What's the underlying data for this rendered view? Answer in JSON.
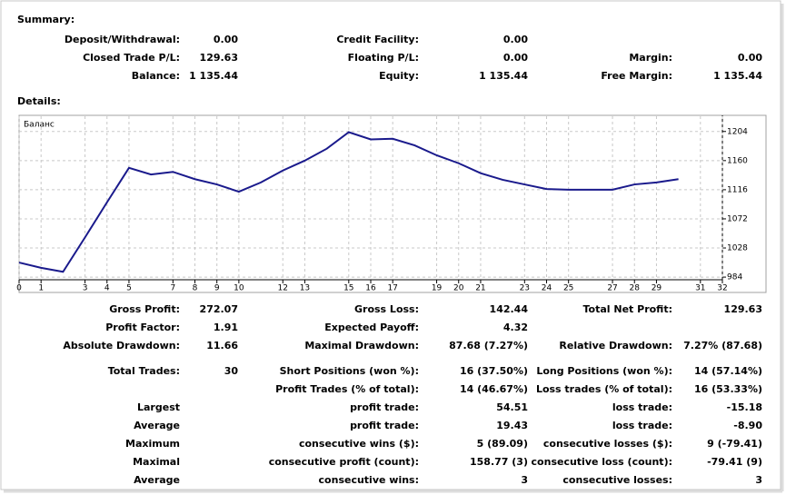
{
  "summary": {
    "title": "Summary:",
    "rows": [
      [
        {
          "label": "Deposit/Withdrawal:",
          "value": "0.00"
        },
        {
          "label": "Credit Facility:",
          "value": "0.00"
        },
        null
      ],
      [
        {
          "label": "Closed Trade P/L:",
          "value": "129.63"
        },
        {
          "label": "Floating P/L:",
          "value": "0.00"
        },
        {
          "label": "Margin:",
          "value": "0.00"
        }
      ],
      [
        {
          "label": "Balance:",
          "value": "1 135.44"
        },
        {
          "label": "Equity:",
          "value": "1 135.44"
        },
        {
          "label": "Free Margin:",
          "value": "1 135.44"
        }
      ]
    ]
  },
  "details": {
    "title": "Details:",
    "rows": [
      [
        {
          "label": "Gross Profit:",
          "value": "272.07"
        },
        {
          "label": "Gross Loss:",
          "value": "142.44"
        },
        {
          "label": "Total Net Profit:",
          "value": "129.63"
        }
      ],
      [
        {
          "label": "Profit Factor:",
          "value": "1.91"
        },
        {
          "label": "Expected Payoff:",
          "value": "4.32"
        },
        null
      ],
      [
        {
          "label": "Absolute Drawdown:",
          "value": "11.66"
        },
        {
          "label": "Maximal Drawdown:",
          "value": "87.68 (7.27%)"
        },
        {
          "label": "Relative Drawdown:",
          "value": "7.27% (87.68)"
        }
      ],
      [
        {
          "label": "Total Trades:",
          "value": "30"
        },
        {
          "label": "Short Positions (won %):",
          "value": "16 (37.50%)"
        },
        {
          "label": "Long Positions (won %):",
          "value": "14 (57.14%)"
        }
      ],
      [
        null,
        {
          "label": "Profit Trades (% of total):",
          "value": "14 (46.67%)"
        },
        {
          "label": "Loss trades (% of total):",
          "value": "16 (53.33%)"
        }
      ],
      [
        {
          "label": "Largest"
        },
        {
          "label": "profit trade:",
          "value": "54.51"
        },
        {
          "label": "loss trade:",
          "value": "-15.18"
        }
      ],
      [
        {
          "label": "Average"
        },
        {
          "label": "profit trade:",
          "value": "19.43"
        },
        {
          "label": "loss trade:",
          "value": "-8.90"
        }
      ],
      [
        {
          "label": "Maximum"
        },
        {
          "label": "consecutive wins ($):",
          "value": "5 (89.09)"
        },
        {
          "label": "consecutive losses ($):",
          "value": "9 (-79.41)"
        }
      ],
      [
        {
          "label": "Maximal"
        },
        {
          "label": "consecutive profit (count):",
          "value": "158.77 (3)"
        },
        {
          "label": "consecutive loss (count):",
          "value": "-79.41 (9)"
        }
      ],
      [
        {
          "label": "Average"
        },
        {
          "label": "consecutive wins:",
          "value": "3"
        },
        {
          "label": "consecutive losses:",
          "value": "3"
        }
      ]
    ]
  },
  "chart_data": {
    "type": "line",
    "series_label": "Баланс",
    "color": "#1a1a8c",
    "x": [
      0,
      1,
      2,
      3,
      4,
      5,
      6,
      7,
      8,
      9,
      10,
      11,
      12,
      13,
      14,
      15,
      16,
      17,
      18,
      19,
      20,
      21,
      22,
      23,
      24,
      25,
      26,
      27,
      28,
      29,
      30
    ],
    "values": [
      1006,
      998,
      992,
      1044,
      1097,
      1149,
      1139,
      1143,
      1132,
      1124,
      1113,
      1127,
      1145,
      1160,
      1178,
      1203,
      1192,
      1193,
      1183,
      1168,
      1156,
      1141,
      1131,
      1124,
      1117,
      1116,
      1116,
      1116,
      1124,
      1127,
      1132
    ],
    "xlim": [
      0,
      32
    ],
    "xticks": [
      0,
      1,
      3,
      4,
      5,
      7,
      8,
      9,
      10,
      12,
      13,
      15,
      16,
      17,
      19,
      20,
      21,
      23,
      24,
      25,
      27,
      28,
      29,
      31,
      32
    ],
    "ylim": [
      980,
      1227
    ],
    "yticks": [
      984,
      1028,
      1072,
      1116,
      1160,
      1204
    ],
    "grid": true
  }
}
